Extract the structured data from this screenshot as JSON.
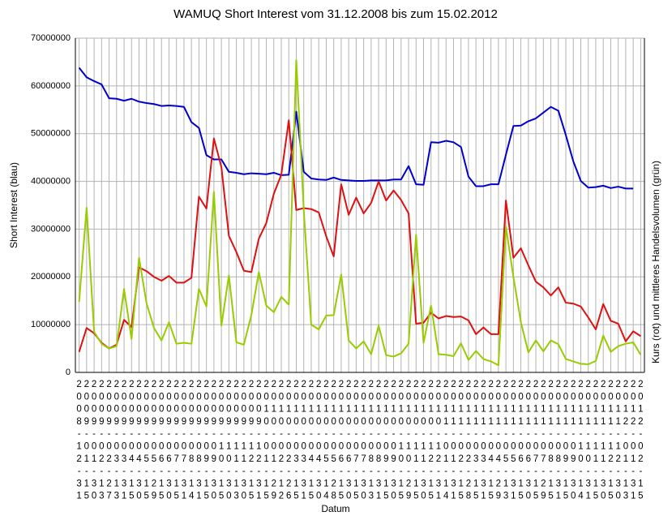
{
  "chart_data": {
    "type": "line",
    "title": "WAMUQ Short Interest vom 31.12.2008 bis zum 15.02.2012",
    "y_label": "Short Interest (blau)",
    "y2_label": "Kurs (rot) und mittleres Handelsvolumen (grün)",
    "x_label": "Datum",
    "categories": [
      "2008-12-31",
      "2009-01-15",
      "2009-01-30",
      "2009-02-13",
      "2009-02-27",
      "2009-03-13",
      "2009-03-31",
      "2009-04-15",
      "2009-04-30",
      "2009-05-15",
      "2009-05-29",
      "2009-06-15",
      "2009-06-30",
      "2009-07-15",
      "2009-07-31",
      "2009-08-14",
      "2009-08-31",
      "2009-09-15",
      "2009-09-30",
      "2009-10-15",
      "2009-10-30",
      "2009-11-13",
      "2009-11-30",
      "2009-12-15",
      "2009-12-31",
      "2010-01-15",
      "2010-01-29",
      "2010-02-12",
      "2010-02-26",
      "2010-03-15",
      "2010-03-31",
      "2010-04-15",
      "2010-04-30",
      "2010-05-14",
      "2010-05-28",
      "2010-06-15",
      "2010-06-30",
      "2010-07-15",
      "2010-07-30",
      "2010-08-13",
      "2010-08-31",
      "2010-09-15",
      "2010-09-30",
      "2010-10-15",
      "2010-10-29",
      "2010-11-15",
      "2010-11-30",
      "2010-12-15",
      "2010-12-31",
      "2011-01-14",
      "2011-01-31",
      "2011-02-15",
      "2011-02-28",
      "2011-03-15",
      "2011-03-31",
      "2011-04-15",
      "2011-04-29",
      "2011-05-13",
      "2011-05-31",
      "2011-06-15",
      "2011-06-30",
      "2011-07-15",
      "2011-07-29",
      "2011-08-15",
      "2011-08-31",
      "2011-09-15",
      "2011-09-30",
      "2011-10-14",
      "2011-10-31",
      "2011-11-15",
      "2011-11-30",
      "2011-12-15",
      "2011-12-30",
      "2012-01-13",
      "2012-01-31",
      "2012-02-15"
    ],
    "ylim": [
      0,
      70000000
    ],
    "yticks": [
      0,
      10000000,
      20000000,
      30000000,
      40000000,
      50000000,
      60000000,
      70000000
    ],
    "grid": true,
    "series": [
      {
        "name": "Short Interest",
        "color": "#0000cc",
        "values": [
          63800000,
          61800000,
          61000000,
          60300000,
          57400000,
          57300000,
          56900000,
          57300000,
          56700000,
          56400000,
          56200000,
          55800000,
          55900000,
          55800000,
          55600000,
          52400000,
          51200000,
          45500000,
          44600000,
          44600000,
          42000000,
          41800000,
          41500000,
          41700000,
          41600000,
          41500000,
          41800000,
          41300000,
          41400000,
          54600000,
          42000000,
          40600000,
          40400000,
          40300000,
          40800000,
          40300000,
          40200000,
          40100000,
          40100000,
          40200000,
          40200000,
          40200000,
          40400000,
          40400000,
          43200000,
          39400000,
          39300000,
          48200000,
          48100000,
          48500000,
          48200000,
          47200000,
          41000000,
          39000000,
          39000000,
          39400000,
          39400000,
          45600000,
          51600000,
          51700000,
          52600000,
          53200000,
          54400000,
          55600000,
          54800000,
          49700000,
          44200000,
          40100000,
          38700000,
          38800000,
          39100000,
          38600000,
          38900000,
          38500000,
          38500000,
          null
        ]
      },
      {
        "name": "Kurs",
        "color": "#dd1111",
        "values": [
          4300000,
          9300000,
          8200000,
          6200000,
          5000000,
          5800000,
          11000000,
          9500000,
          22000000,
          21200000,
          20000000,
          19200000,
          20200000,
          18800000,
          18800000,
          19800000,
          36800000,
          34300000,
          49000000,
          43000000,
          28600000,
          25200000,
          21300000,
          21000000,
          28000000,
          31300000,
          37400000,
          41400000,
          52800000,
          34000000,
          34400000,
          34200000,
          33500000,
          28500000,
          24300000,
          39400000,
          33000000,
          36600000,
          33300000,
          35500000,
          40000000,
          36000000,
          38100000,
          36100000,
          33300000,
          10200000,
          10400000,
          12500000,
          11300000,
          11800000,
          11600000,
          11700000,
          10900000,
          8000000,
          9400000,
          8000000,
          8000000,
          36000000,
          24000000,
          26000000,
          22400000,
          19000000,
          17800000,
          16100000,
          17800000,
          14600000,
          14400000,
          13800000,
          11500000,
          9000000,
          14300000,
          10800000,
          10200000,
          6500000,
          8600000,
          7600000
        ]
      },
      {
        "name": "mittleres Handelsvolumen",
        "color": "#99cc00",
        "values": [
          14800000,
          34500000,
          8500000,
          6000000,
          5000000,
          5500000,
          17500000,
          7000000,
          24000000,
          14500000,
          9300000,
          6700000,
          10500000,
          6000000,
          6200000,
          6000000,
          17500000,
          13800000,
          37800000,
          9800000,
          20300000,
          6300000,
          5800000,
          12000000,
          21000000,
          14000000,
          12600000,
          15800000,
          14200000,
          65400000,
          34000000,
          10000000,
          9000000,
          11900000,
          12000000,
          20500000,
          6700000,
          5000000,
          6500000,
          3800000,
          9800000,
          3600000,
          3300000,
          4000000,
          6000000,
          28800000,
          6200000,
          14000000,
          3800000,
          3700000,
          3400000,
          6100000,
          2600000,
          4500000,
          2800000,
          2300000,
          1500000,
          30500000,
          20000000,
          10500000,
          4200000,
          6700000,
          4400000,
          6700000,
          5900000,
          2800000,
          2300000,
          1800000,
          1700000,
          2400000,
          7700000,
          4300000,
          5500000,
          6000000,
          6300000,
          3700000
        ]
      }
    ]
  }
}
